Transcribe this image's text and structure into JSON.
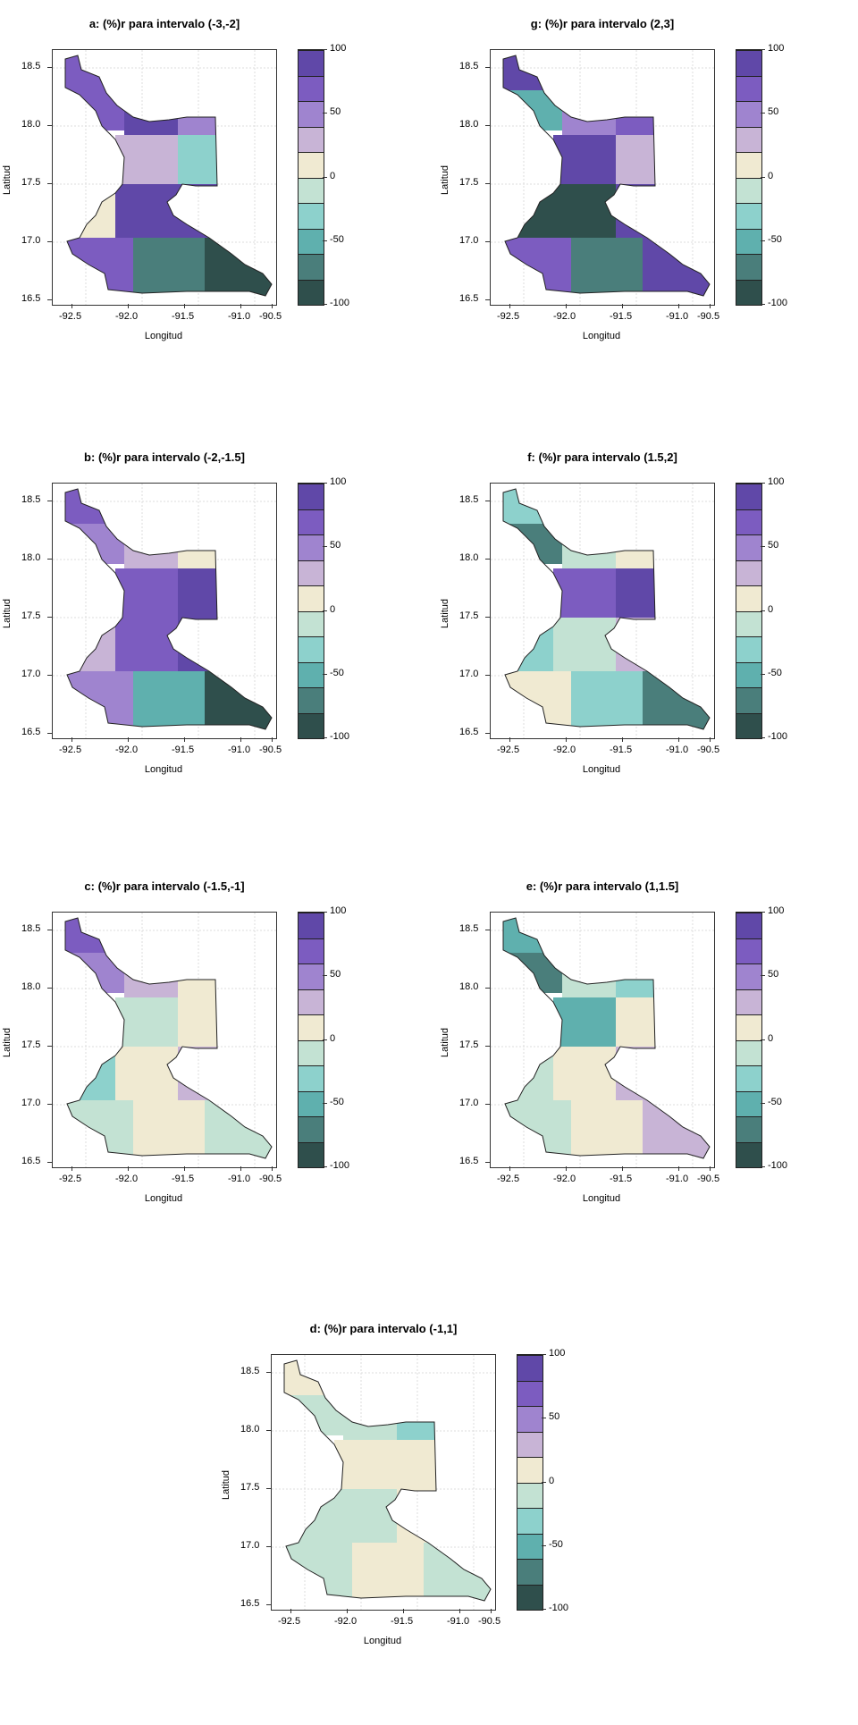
{
  "palette": [
    "#2f4f4c",
    "#4a7e7b",
    "#5fb0ae",
    "#8dd1cc",
    "#c3e2d3",
    "#f0ead2",
    "#c8b4d6",
    "#9f84cf",
    "#7c5cc0",
    "#6048a8"
  ],
  "legend_ticks": [
    "100",
    "50",
    "0",
    "-50",
    "-100"
  ],
  "x_ticks": [
    "-92.5",
    "-92.0",
    "-91.5",
    "-91.0",
    "-90.5"
  ],
  "y_ticks": [
    "18.5",
    "18.0",
    "17.5",
    "17.0",
    "16.5"
  ],
  "xlabel": "Longitud",
  "ylabel": "Latitud",
  "panels": [
    {
      "id": "a",
      "label": "a:",
      "title": "(%)r para intervalo (-3,-2]",
      "pattern": [
        8,
        8,
        9,
        7,
        6,
        3,
        5,
        9,
        9,
        8,
        1,
        0
      ]
    },
    {
      "id": "g",
      "label": "g:",
      "title": "(%)r para intervalo (2,3]",
      "pattern": [
        9,
        2,
        7,
        8,
        9,
        6,
        0,
        0,
        9,
        8,
        1,
        9
      ]
    },
    {
      "id": "b",
      "label": "b:",
      "title": "(%)r para intervalo (-2,-1.5]",
      "pattern": [
        8,
        7,
        6,
        5,
        8,
        9,
        6,
        8,
        9,
        7,
        2,
        0
      ]
    },
    {
      "id": "f",
      "label": "f:",
      "title": "(%)r para intervalo (1.5,2]",
      "pattern": [
        3,
        1,
        4,
        5,
        8,
        9,
        3,
        4,
        6,
        5,
        3,
        1
      ]
    },
    {
      "id": "c",
      "label": "c:",
      "title": "(%)r para intervalo (-1.5,-1]",
      "pattern": [
        8,
        7,
        6,
        5,
        4,
        5,
        3,
        5,
        6,
        4,
        5,
        4
      ]
    },
    {
      "id": "e",
      "label": "e:",
      "title": "(%)r para intervalo (1,1.5]",
      "pattern": [
        2,
        1,
        4,
        3,
        2,
        5,
        4,
        5,
        6,
        4,
        5,
        6
      ]
    },
    {
      "id": "d",
      "label": "d:",
      "title": "(%)r para intervalo (-1,1]",
      "pattern": [
        5,
        4,
        4,
        3,
        5,
        5,
        4,
        4,
        5,
        4,
        5,
        4
      ]
    }
  ]
}
